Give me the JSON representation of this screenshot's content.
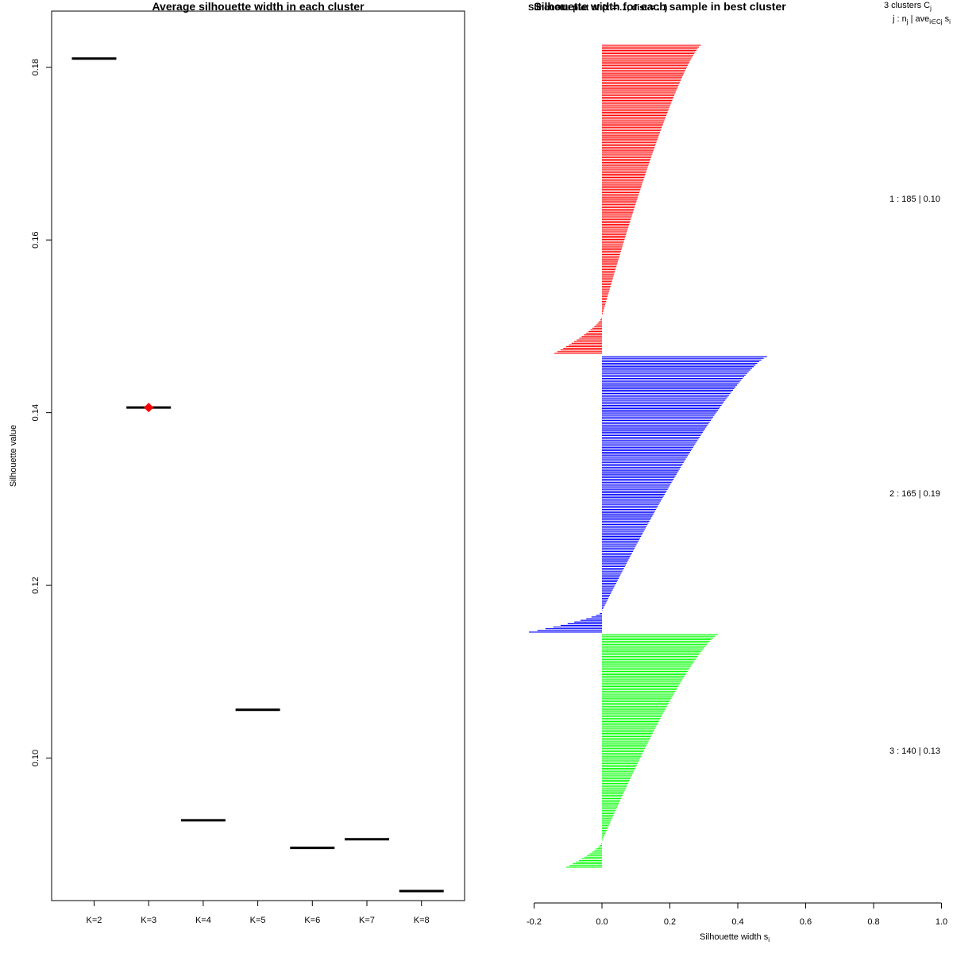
{
  "chart_data": [
    {
      "type": "scatter",
      "title": "Average silhouette width in each cluster",
      "xlabel": "",
      "ylabel": "Silhouette value",
      "categories": [
        "K=2",
        "K=3",
        "K=4",
        "K=5",
        "K=6",
        "K=7",
        "K=8"
      ],
      "values": [
        0.181,
        0.1406,
        0.0928,
        0.1056,
        0.0896,
        0.0906,
        0.0846
      ],
      "highlight": {
        "category": "K=3",
        "value": 0.1406,
        "color": "#ff0000"
      },
      "ylim": [
        0.0835,
        0.1865
      ],
      "yticks": [
        0.1,
        0.12,
        0.14,
        0.16,
        0.18
      ],
      "ytick_labels": [
        "0.10",
        "0.12",
        "0.14",
        "0.16",
        "0.18"
      ],
      "mark_color": "#000000"
    },
    {
      "type": "bar",
      "orientation": "horizontal",
      "title": "Silhouette width for each sample in best cluster",
      "title_overlap_text": "Silhouette plot of (x = ..., dist = ...)",
      "xlabel": "Silhouette width s",
      "xlabel_subscript": "i",
      "xlim": [
        -0.2,
        1.0
      ],
      "xticks": [
        -0.2,
        0.0,
        0.2,
        0.4,
        0.6,
        0.8,
        1.0
      ],
      "xtick_labels": [
        "-0.2",
        "0.0",
        "0.2",
        "0.4",
        "0.6",
        "0.8",
        "1.0"
      ],
      "legend": {
        "header_line1": "3  clusters  C",
        "header_line1_sub": "j",
        "header_line2_a": "j :  n",
        "header_line2_a_sub": "j",
        "header_line2_b": " | ave",
        "header_line2_b_sub": "i∈Cj",
        "header_line2_c": "  s",
        "header_line2_c_sub": "i"
      },
      "series": [
        {
          "name": "1",
          "n": 185,
          "label": "1 :  185  |  0.10",
          "color": "#ff0000",
          "max": 0.29,
          "min": -0.14,
          "positive_count": 162
        },
        {
          "name": "2",
          "n": 165,
          "label": "2 :  165  |  0.19",
          "color": "#0000ff",
          "max": 0.485,
          "min": -0.215,
          "positive_count": 152
        },
        {
          "name": "3",
          "n": 140,
          "label": "3 :  140  |  0.13",
          "color": "#00ff00",
          "max": 0.34,
          "min": -0.105,
          "positive_count": 124
        }
      ]
    }
  ]
}
